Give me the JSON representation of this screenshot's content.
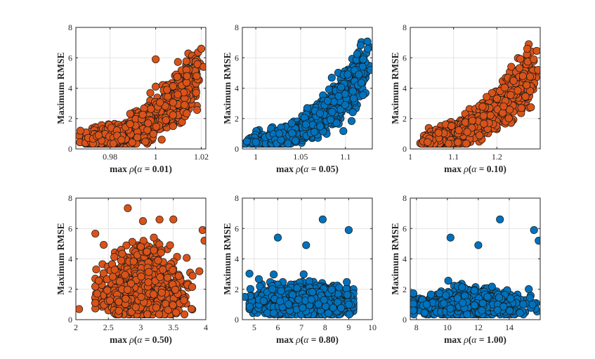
{
  "chart_data": [
    {
      "type": "scatter",
      "ylabel": "Maximum RMSE",
      "xlabel": "max ρ(α = 0.01)",
      "xlabel_parts": [
        "max",
        "ρ",
        "(",
        "α",
        " = 0.01)"
      ],
      "xlim": [
        0.965,
        1.022
      ],
      "ylim": [
        0,
        8
      ],
      "xticks": [
        0.98,
        1,
        1.02
      ],
      "xtick_labels": [
        "0.98",
        "1",
        "1.02"
      ],
      "yticks": [
        0,
        2,
        4,
        6,
        8
      ],
      "ytick_labels": [
        "0",
        "2",
        "4",
        "6",
        "8"
      ],
      "grid": true,
      "color": "#D95319",
      "trend": {
        "x0": 0.97,
        "x1": 1.018,
        "y_low": 0.5,
        "y_high": 5.0,
        "power": 2.2,
        "spread": 0.35
      },
      "highlights": [
        [
          1.0,
          5.9
        ],
        [
          1.02,
          6.6
        ],
        [
          1.021,
          5.4
        ],
        [
          1.018,
          4.8
        ],
        [
          1.0,
          4.1
        ],
        [
          0.967,
          1.2
        ],
        [
          0.975,
          0.9
        ],
        [
          0.985,
          0.6
        ]
      ]
    },
    {
      "type": "scatter",
      "ylabel": "Maximum RMSE",
      "xlabel": "max ρ(α = 0.05)",
      "xlabel_parts": [
        "max",
        "ρ",
        "(",
        "α",
        " = 0.05)"
      ],
      "xlim": [
        0.985,
        1.13
      ],
      "ylim": [
        0,
        8
      ],
      "xticks": [
        1,
        1.05,
        1.1
      ],
      "xtick_labels": [
        "1",
        "1.05",
        "1.1"
      ],
      "yticks": [
        0,
        2,
        4,
        6,
        8
      ],
      "ytick_labels": [
        "0",
        "2",
        "4",
        "6",
        "8"
      ],
      "grid": true,
      "color": "#0072BD",
      "trend": {
        "x0": 0.99,
        "x1": 1.12,
        "y_low": 0.4,
        "y_high": 5.2,
        "power": 2.3,
        "spread": 0.25
      },
      "highlights": [
        [
          1.125,
          6.6
        ],
        [
          1.12,
          5.9
        ],
        [
          1.128,
          5.2
        ],
        [
          1.115,
          4.9
        ],
        [
          0.99,
          0.5
        ],
        [
          1.0,
          0.45
        ]
      ]
    },
    {
      "type": "scatter",
      "ylabel": "Maximum RMSE",
      "xlabel": "max ρ(α = 0.10)",
      "xlabel_parts": [
        "max",
        "ρ",
        "(",
        "α",
        " = 0.10)"
      ],
      "xlim": [
        1.0,
        1.3
      ],
      "ylim": [
        0,
        8
      ],
      "xticks": [
        1,
        1.1,
        1.2
      ],
      "xtick_labels": [
        "1",
        "1.1",
        "1.2"
      ],
      "yticks": [
        0,
        2,
        4,
        6,
        8
      ],
      "ytick_labels": [
        "0",
        "2",
        "4",
        "6",
        "8"
      ],
      "grid": true,
      "color": "#D95319",
      "trend": {
        "x0": 1.03,
        "x1": 1.28,
        "y_low": 0.5,
        "y_high": 5.0,
        "power": 2.0,
        "spread": 0.3
      },
      "highlights": [
        [
          1.27,
          6.6
        ],
        [
          1.285,
          5.9
        ],
        [
          1.295,
          5.2
        ],
        [
          1.26,
          4.8
        ],
        [
          1.03,
          0.5
        ],
        [
          1.04,
          0.45
        ]
      ]
    },
    {
      "type": "scatter",
      "ylabel": "Maximum RMSE",
      "xlabel": "max ρ(α = 0.50)",
      "xlabel_parts": [
        "max",
        "ρ",
        "(",
        "α",
        " = 0.50)"
      ],
      "xlim": [
        2.0,
        4.0
      ],
      "ylim": [
        0,
        8
      ],
      "xticks": [
        2,
        2.5,
        3,
        3.5,
        4
      ],
      "xtick_labels": [
        "2",
        "2.5",
        "3",
        "3.5",
        "4"
      ],
      "yticks": [
        0,
        2,
        4,
        6,
        8
      ],
      "ytick_labels": [
        "0",
        "2",
        "4",
        "6",
        "8"
      ],
      "grid": true,
      "color": "#D95319",
      "cloud": {
        "cx": 3.0,
        "sx": 0.3,
        "x_min": 2.3,
        "x_max": 3.9,
        "y_base": 0.6,
        "y_slope": 1.6,
        "spread": 0.55
      },
      "highlights": [
        [
          3.5,
          6.6
        ],
        [
          3.95,
          5.9
        ],
        [
          3.98,
          5.2
        ],
        [
          3.2,
          5.4
        ],
        [
          3.45,
          4.9
        ],
        [
          2.05,
          0.7
        ],
        [
          3.0,
          4.8
        ]
      ]
    },
    {
      "type": "scatter",
      "ylabel": "Maximum RMSE",
      "xlabel": "max ρ(α = 0.80)",
      "xlabel_parts": [
        "max",
        "ρ",
        "(",
        "α",
        " = 0.80)"
      ],
      "xlim": [
        4.5,
        10.0
      ],
      "ylim": [
        0,
        8
      ],
      "xticks": [
        5,
        6,
        7,
        8,
        9,
        10
      ],
      "xtick_labels": [
        "5",
        "6",
        "7",
        "8",
        "9",
        "10"
      ],
      "yticks": [
        0,
        2,
        4,
        6,
        8
      ],
      "ytick_labels": [
        "0",
        "2",
        "4",
        "6",
        "8"
      ],
      "grid": true,
      "color": "#0072BD",
      "cloud": {
        "cx": 7.0,
        "sx": 0.9,
        "x_min": 4.8,
        "x_max": 9.2,
        "y_base": 0.7,
        "y_slope": 0.6,
        "spread": 0.55
      },
      "highlights": [
        [
          7.9,
          6.6
        ],
        [
          9.0,
          5.9
        ],
        [
          6.0,
          5.4
        ],
        [
          4.6,
          1.5
        ],
        [
          9.0,
          1.0
        ],
        [
          7.2,
          4.9
        ]
      ]
    },
    {
      "type": "scatter",
      "ylabel": "Maximum RMSE",
      "xlabel": "max ρ(α = 1.00)",
      "xlabel_parts": [
        "max",
        "ρ",
        "(",
        "α",
        " = 1.00)"
      ],
      "xlim": [
        7.6,
        16.0
      ],
      "ylim": [
        0,
        8
      ],
      "xticks": [
        8,
        10,
        12,
        14
      ],
      "xtick_labels": [
        "8",
        "10",
        "12",
        "14"
      ],
      "yticks": [
        0,
        2,
        4,
        6,
        8
      ],
      "ytick_labels": [
        "0",
        "2",
        "4",
        "6",
        "8"
      ],
      "grid": true,
      "color": "#0072BD",
      "cloud": {
        "cx": 11.5,
        "sx": 1.4,
        "x_min": 7.8,
        "x_max": 15.8,
        "y_base": 0.7,
        "y_slope": 0.35,
        "spread": 0.55
      },
      "highlights": [
        [
          13.4,
          6.6
        ],
        [
          15.6,
          5.9
        ],
        [
          15.9,
          5.2
        ],
        [
          10.2,
          5.4
        ],
        [
          12.0,
          4.9
        ],
        [
          7.8,
          0.6
        ],
        [
          15.5,
          1.0
        ]
      ]
    }
  ]
}
